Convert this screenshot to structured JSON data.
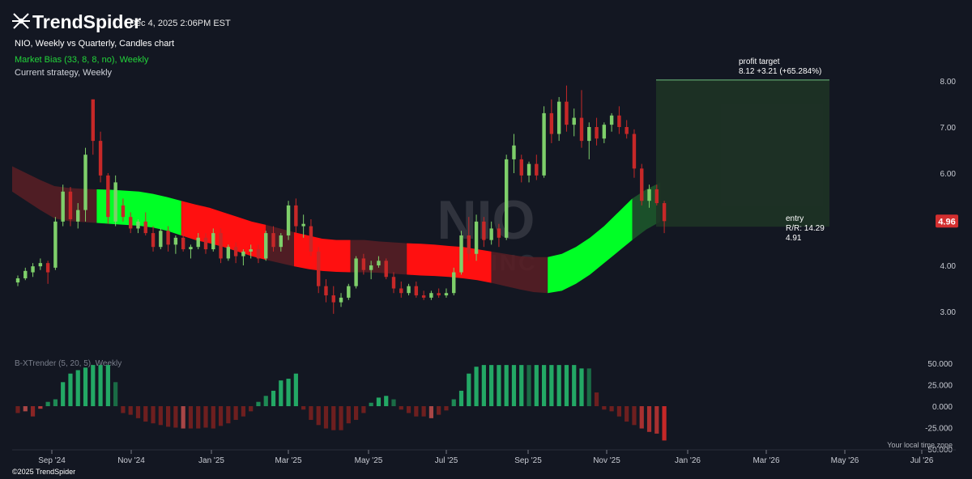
{
  "header": {
    "brand": "TrendSpider",
    "datetime": "Dec 4, 2025 2:06PM EST",
    "chart_title": "NIO, Weekly vs Quarterly, Candles chart",
    "indicator_1": "Market Bias (33, 8, 8, no), Weekly",
    "indicator_2": "Current strategy, Weekly",
    "copyright": "©2025 TrendSpider",
    "local_time": "Your local time zone"
  },
  "watermark": {
    "symbol": "NIO",
    "name": "NIO INC"
  },
  "colors": {
    "background": "#131722",
    "up_candle": "#7ecf6a",
    "down_candle": "#c62828",
    "bias_bull": "#00ff26",
    "bias_bear": "#ff1010",
    "bias_bull_dim": "#1d5a2c",
    "bias_bear_dim": "#5a1e24",
    "zone_fill": "#1e3325",
    "price_badge": "#d32f2f"
  },
  "chart_data": [
    {
      "type": "candlestick",
      "title": "NIO, Weekly vs Quarterly, Candles chart",
      "x_ticks": [
        "Sep '24",
        "Nov '24",
        "Jan '25",
        "Mar '25",
        "May '25",
        "Jul '25",
        "Sep '25",
        "Nov '25",
        "Jan '26",
        "Mar '26",
        "May '26",
        "Jul '26"
      ],
      "y_ticks": [
        "3.00",
        "4.00",
        "5.00",
        "6.00",
        "7.00",
        "8.00"
      ],
      "ylim": [
        2.45,
        8.35
      ],
      "last_price": "4.96",
      "candles": [
        {
          "o": 3.63,
          "h": 3.78,
          "l": 3.55,
          "c": 3.72
        },
        {
          "o": 3.72,
          "h": 3.95,
          "l": 3.68,
          "c": 3.88
        },
        {
          "o": 3.85,
          "h": 4.05,
          "l": 3.75,
          "c": 3.98
        },
        {
          "o": 3.98,
          "h": 4.15,
          "l": 3.9,
          "c": 4.05
        },
        {
          "o": 4.05,
          "h": 4.1,
          "l": 3.6,
          "c": 3.85
        },
        {
          "o": 3.95,
          "h": 5.05,
          "l": 3.9,
          "c": 4.95
        },
        {
          "o": 4.95,
          "h": 5.75,
          "l": 4.85,
          "c": 5.6
        },
        {
          "o": 5.6,
          "h": 5.7,
          "l": 4.85,
          "c": 5.0
        },
        {
          "o": 4.95,
          "h": 5.35,
          "l": 4.8,
          "c": 5.2
        },
        {
          "o": 5.2,
          "h": 6.55,
          "l": 4.95,
          "c": 6.4
        },
        {
          "o": 7.6,
          "h": 7.6,
          "l": 6.4,
          "c": 6.7
        },
        {
          "o": 6.7,
          "h": 6.9,
          "l": 5.8,
          "c": 5.95
        },
        {
          "o": 5.95,
          "h": 6.0,
          "l": 4.9,
          "c": 5.05
        },
        {
          "o": 4.95,
          "h": 5.95,
          "l": 4.85,
          "c": 5.8
        },
        {
          "o": 5.3,
          "h": 5.45,
          "l": 4.95,
          "c": 5.05
        },
        {
          "o": 5.05,
          "h": 5.15,
          "l": 4.7,
          "c": 4.8
        },
        {
          "o": 4.8,
          "h": 5.0,
          "l": 4.7,
          "c": 4.95
        },
        {
          "o": 4.95,
          "h": 5.15,
          "l": 4.65,
          "c": 4.7
        },
        {
          "o": 4.7,
          "h": 4.85,
          "l": 4.3,
          "c": 4.4
        },
        {
          "o": 4.4,
          "h": 4.8,
          "l": 4.35,
          "c": 4.75
        },
        {
          "o": 4.75,
          "h": 4.85,
          "l": 4.3,
          "c": 4.45
        },
        {
          "o": 4.45,
          "h": 4.65,
          "l": 4.25,
          "c": 4.6
        },
        {
          "o": 4.6,
          "h": 4.75,
          "l": 4.3,
          "c": 4.35
        },
        {
          "o": 4.35,
          "h": 4.45,
          "l": 4.15,
          "c": 4.4
        },
        {
          "o": 4.4,
          "h": 4.7,
          "l": 4.35,
          "c": 4.6
        },
        {
          "o": 4.6,
          "h": 4.7,
          "l": 4.25,
          "c": 4.35
        },
        {
          "o": 4.35,
          "h": 4.8,
          "l": 4.3,
          "c": 4.7
        },
        {
          "o": 4.7,
          "h": 4.8,
          "l": 4.05,
          "c": 4.15
        },
        {
          "o": 4.15,
          "h": 4.45,
          "l": 4.1,
          "c": 4.4
        },
        {
          "o": 4.4,
          "h": 4.5,
          "l": 4.05,
          "c": 4.2
        },
        {
          "o": 4.2,
          "h": 4.35,
          "l": 4.0,
          "c": 4.3
        },
        {
          "o": 4.3,
          "h": 4.45,
          "l": 4.15,
          "c": 4.35
        },
        {
          "o": 4.35,
          "h": 4.45,
          "l": 4.05,
          "c": 4.15
        },
        {
          "o": 4.15,
          "h": 4.75,
          "l": 4.1,
          "c": 4.7
        },
        {
          "o": 4.7,
          "h": 4.85,
          "l": 4.3,
          "c": 4.4
        },
        {
          "o": 4.4,
          "h": 4.7,
          "l": 4.3,
          "c": 4.65
        },
        {
          "o": 4.65,
          "h": 5.4,
          "l": 4.55,
          "c": 5.3
        },
        {
          "o": 5.3,
          "h": 5.45,
          "l": 4.7,
          "c": 4.85
        },
        {
          "o": 4.85,
          "h": 5.1,
          "l": 4.6,
          "c": 4.9
        },
        {
          "o": 4.85,
          "h": 5.0,
          "l": 4.2,
          "c": 4.3
        },
        {
          "o": 4.3,
          "h": 4.4,
          "l": 3.4,
          "c": 3.55
        },
        {
          "o": 3.55,
          "h": 3.7,
          "l": 3.2,
          "c": 3.35
        },
        {
          "o": 3.35,
          "h": 3.55,
          "l": 2.95,
          "c": 3.2
        },
        {
          "o": 3.2,
          "h": 3.4,
          "l": 3.1,
          "c": 3.3
        },
        {
          "o": 3.3,
          "h": 3.6,
          "l": 3.25,
          "c": 3.55
        },
        {
          "o": 3.55,
          "h": 4.2,
          "l": 3.5,
          "c": 4.15
        },
        {
          "o": 4.15,
          "h": 4.25,
          "l": 3.8,
          "c": 3.9
        },
        {
          "o": 3.9,
          "h": 4.1,
          "l": 3.7,
          "c": 4.0
        },
        {
          "o": 4.0,
          "h": 4.2,
          "l": 3.95,
          "c": 4.1
        },
        {
          "o": 4.1,
          "h": 4.15,
          "l": 3.7,
          "c": 3.75
        },
        {
          "o": 3.75,
          "h": 3.85,
          "l": 3.4,
          "c": 3.5
        },
        {
          "o": 3.5,
          "h": 3.65,
          "l": 3.3,
          "c": 3.4
        },
        {
          "o": 3.4,
          "h": 3.6,
          "l": 3.35,
          "c": 3.55
        },
        {
          "o": 3.55,
          "h": 3.65,
          "l": 3.3,
          "c": 3.35
        },
        {
          "o": 3.35,
          "h": 3.45,
          "l": 3.25,
          "c": 3.3
        },
        {
          "o": 3.3,
          "h": 3.45,
          "l": 3.25,
          "c": 3.4
        },
        {
          "o": 3.4,
          "h": 3.5,
          "l": 3.3,
          "c": 3.35
        },
        {
          "o": 3.35,
          "h": 3.5,
          "l": 3.3,
          "c": 3.4
        },
        {
          "o": 3.4,
          "h": 3.95,
          "l": 3.35,
          "c": 3.85
        },
        {
          "o": 3.85,
          "h": 4.75,
          "l": 3.8,
          "c": 4.65
        },
        {
          "o": 4.65,
          "h": 5.05,
          "l": 4.1,
          "c": 4.25
        },
        {
          "o": 4.25,
          "h": 5.1,
          "l": 4.1,
          "c": 4.95
        },
        {
          "o": 4.95,
          "h": 5.05,
          "l": 4.4,
          "c": 4.55
        },
        {
          "o": 4.55,
          "h": 4.95,
          "l": 4.45,
          "c": 4.8
        },
        {
          "o": 4.8,
          "h": 4.9,
          "l": 4.4,
          "c": 4.6
        },
        {
          "o": 4.6,
          "h": 6.4,
          "l": 4.55,
          "c": 6.3
        },
        {
          "o": 6.3,
          "h": 6.85,
          "l": 6.0,
          "c": 6.6
        },
        {
          "o": 6.3,
          "h": 6.4,
          "l": 5.8,
          "c": 5.95
        },
        {
          "o": 5.95,
          "h": 6.25,
          "l": 5.8,
          "c": 6.2
        },
        {
          "o": 6.2,
          "h": 6.4,
          "l": 5.85,
          "c": 5.95
        },
        {
          "o": 5.95,
          "h": 7.45,
          "l": 5.9,
          "c": 7.3
        },
        {
          "o": 7.3,
          "h": 7.6,
          "l": 6.65,
          "c": 6.85
        },
        {
          "o": 6.85,
          "h": 7.65,
          "l": 6.7,
          "c": 7.55
        },
        {
          "o": 7.55,
          "h": 7.9,
          "l": 6.9,
          "c": 7.05
        },
        {
          "o": 7.05,
          "h": 7.4,
          "l": 6.8,
          "c": 7.2
        },
        {
          "o": 7.2,
          "h": 7.8,
          "l": 6.55,
          "c": 6.7
        },
        {
          "o": 6.7,
          "h": 7.1,
          "l": 6.3,
          "c": 7.0
        },
        {
          "o": 7.0,
          "h": 7.2,
          "l": 6.6,
          "c": 6.75
        },
        {
          "o": 6.75,
          "h": 7.1,
          "l": 6.65,
          "c": 7.05
        },
        {
          "o": 7.05,
          "h": 7.3,
          "l": 6.9,
          "c": 7.25
        },
        {
          "o": 7.25,
          "h": 7.45,
          "l": 6.85,
          "c": 7.0
        },
        {
          "o": 7.0,
          "h": 7.15,
          "l": 6.75,
          "c": 6.85
        },
        {
          "o": 6.85,
          "h": 6.95,
          "l": 5.9,
          "c": 6.1
        },
        {
          "o": 6.1,
          "h": 6.2,
          "l": 5.3,
          "c": 5.4
        },
        {
          "o": 5.4,
          "h": 5.75,
          "l": 5.25,
          "c": 5.65
        },
        {
          "o": 5.65,
          "h": 5.75,
          "l": 5.3,
          "c": 5.35
        },
        {
          "o": 5.35,
          "h": 5.4,
          "l": 4.7,
          "c": 4.96
        }
      ],
      "market_bias_band": {
        "upper": [
          6.15,
          6.0,
          5.85,
          5.72,
          5.68,
          5.66,
          5.65,
          5.64,
          5.62,
          5.6,
          5.55,
          5.48,
          5.4,
          5.32,
          5.25,
          5.15,
          5.05,
          4.95,
          4.88,
          4.8,
          4.72,
          4.65,
          4.58,
          4.55,
          4.55,
          4.55,
          4.52,
          4.5,
          4.48,
          4.47,
          4.45,
          4.42,
          4.4,
          4.35,
          4.3,
          4.25,
          4.2,
          4.18,
          4.18,
          4.25,
          4.4,
          4.6,
          4.85,
          5.15,
          5.45,
          5.65,
          5.8
        ],
        "lower": [
          5.6,
          5.4,
          5.2,
          5.02,
          4.96,
          4.94,
          4.92,
          4.9,
          4.88,
          4.86,
          4.82,
          4.75,
          4.65,
          4.55,
          4.48,
          4.4,
          4.3,
          4.2,
          4.12,
          4.05,
          3.98,
          3.92,
          3.88,
          3.86,
          3.85,
          3.85,
          3.84,
          3.82,
          3.8,
          3.78,
          3.77,
          3.75,
          3.72,
          3.68,
          3.62,
          3.55,
          3.48,
          3.42,
          3.4,
          3.45,
          3.6,
          3.8,
          4.05,
          4.3,
          4.55,
          4.78,
          4.95
        ],
        "segments": [
          {
            "from": 0,
            "to": 6,
            "state": "bear_dim"
          },
          {
            "from": 6,
            "to": 12,
            "state": "bull"
          },
          {
            "from": 12,
            "to": 18,
            "state": "bear"
          },
          {
            "from": 18,
            "to": 20,
            "state": "bear_dim"
          },
          {
            "from": 20,
            "to": 24,
            "state": "bear"
          },
          {
            "from": 24,
            "to": 28,
            "state": "bear_dim"
          },
          {
            "from": 28,
            "to": 34,
            "state": "bear"
          },
          {
            "from": 34,
            "to": 38,
            "state": "bear_dim"
          },
          {
            "from": 38,
            "to": 44,
            "state": "bull"
          },
          {
            "from": 44,
            "to": 46,
            "state": "bull_dim"
          }
        ]
      }
    },
    {
      "type": "bar",
      "title": "B-XTrender (5, 20, 5), Weekly",
      "y_ticks": [
        "50.000",
        "25.000",
        "0.000",
        "-25.000",
        "-50.000"
      ],
      "ylim": [
        -55,
        55
      ],
      "values": [
        -8,
        -6,
        -12,
        -3,
        5,
        8,
        28,
        38,
        42,
        45,
        48,
        48,
        48,
        28,
        -8,
        -10,
        -14,
        -18,
        -20,
        -22,
        -24,
        -25,
        -26,
        -26,
        -26,
        -25,
        -26,
        -23,
        -20,
        -16,
        -12,
        -6,
        5,
        12,
        18,
        30,
        32,
        38,
        -4,
        -16,
        -22,
        -26,
        -28,
        -28,
        -20,
        -16,
        -8,
        4,
        10,
        12,
        8,
        -4,
        -8,
        -12,
        -12,
        -14,
        -10,
        -5,
        8,
        18,
        38,
        46,
        48,
        48,
        48,
        48,
        48,
        48,
        48,
        48,
        48,
        48,
        48,
        48,
        48,
        44,
        44,
        16,
        -4,
        -6,
        -12,
        -18,
        -22,
        -26,
        -30,
        -32,
        -40
      ],
      "colors": [
        "#6e1f1f",
        "#a84646",
        "#8a2525",
        "#b23a3a",
        "#1e8a55",
        "#1e8a55",
        "#23a865",
        "#23a865",
        "#23a865",
        "#23a865",
        "#23a865",
        "#23a865",
        "#23a865",
        "#1a6b45",
        "#6e1f1f",
        "#6e1f1f",
        "#6e1f1f",
        "#6e1f1f",
        "#6e1f1f",
        "#6e1f1f",
        "#6e1f1f",
        "#6e1f1f",
        "#a84646",
        "#6e1f1f",
        "#6e1f1f",
        "#6e1f1f",
        "#6e1f1f",
        "#6e1f1f",
        "#6e1f1f",
        "#6e1f1f",
        "#6e1f1f",
        "#6e1f1f",
        "#1e8a55",
        "#1e8a55",
        "#23a865",
        "#23a865",
        "#23a865",
        "#23a865",
        "#6e1f1f",
        "#6e1f1f",
        "#6e1f1f",
        "#6e1f1f",
        "#6e1f1f",
        "#6e1f1f",
        "#6e1f1f",
        "#6e1f1f",
        "#6e1f1f",
        "#1e8a55",
        "#23a865",
        "#23a865",
        "#1a6b45",
        "#6e1f1f",
        "#6e1f1f",
        "#6e1f1f",
        "#6e1f1f",
        "#a84646",
        "#6e1f1f",
        "#6e1f1f",
        "#1e8a55",
        "#23a865",
        "#23a865",
        "#23a865",
        "#23a865",
        "#23a865",
        "#23a865",
        "#23a865",
        "#23a865",
        "#23a865",
        "#1a6b45",
        "#23a865",
        "#23a865",
        "#23a865",
        "#23a865",
        "#23a865",
        "#23a865",
        "#23a865",
        "#1a6b45",
        "#6e1f1f",
        "#6e1f1f",
        "#6e1f1f",
        "#6e1f1f",
        "#6e1f1f",
        "#6e1f1f",
        "#a83030",
        "#a83030",
        "#a83030",
        "#c62828"
      ]
    }
  ],
  "annotations": {
    "profit_target": {
      "label": "profit target",
      "value": "8.12 +3.21 (+65.284%)",
      "price": 8.02
    },
    "entry": {
      "label": "entry",
      "rr": "R/R: 14.29",
      "value": "4.91",
      "price": 4.84
    }
  }
}
